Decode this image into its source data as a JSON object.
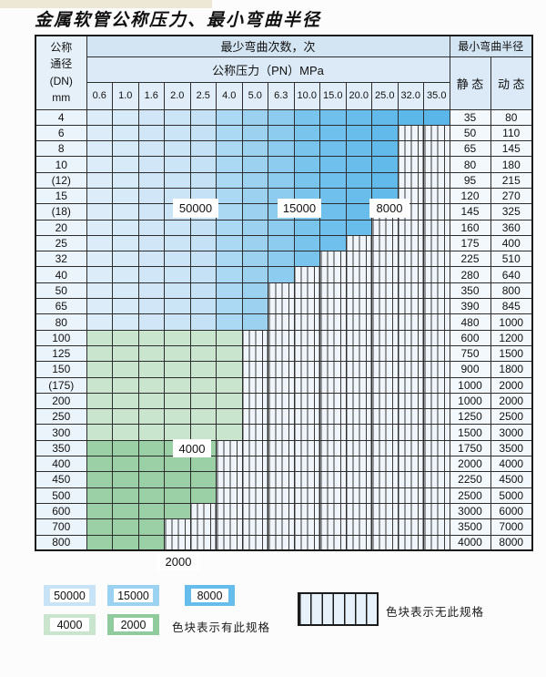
{
  "page": {
    "title": "金属软管公称压力、最小弯曲半径"
  },
  "table": {
    "corner": {
      "line1": "公称",
      "line2": "通径",
      "line3": "(DN)",
      "line4": "mm"
    },
    "cycles_header": "最少弯曲次数，次",
    "pressure_header": "公称压力（PN）MPa",
    "radius_header": "最小弯曲半径",
    "static_label": "静 态",
    "dynamic_label": "动 态",
    "pressures": [
      "0.6",
      "1.0",
      "1.6",
      "2.0",
      "2.5",
      "4.0",
      "5.0",
      "6.3",
      "10.0",
      "15.0",
      "20.0",
      "25.0",
      "32.0",
      "35.0"
    ],
    "blue_col_cycles": {
      "0.6-2.5": "50000",
      "4.0-6.3": "15000",
      "10.0-35.0": "8000"
    },
    "zone_colors": {
      "blue_by_col": [
        "#DCEDF9",
        "#D7EAF8",
        "#D1E7F7",
        "#CBE4F6",
        "#C5E1F5",
        "#ABD8F2",
        "#9CD2F0",
        "#8DCBEF",
        "#78C4ED",
        "#6FC0EC",
        "#68BDEB",
        "#62BAEA",
        "#5DB8EA",
        "#5AB6E9"
      ],
      "green_4000": "#CAE5CE",
      "green_2000": "#9BCFA5"
    },
    "rows": [
      {
        "dn": "4",
        "zone": "blue",
        "colored": 14,
        "static": "35",
        "dynamic": "80"
      },
      {
        "dn": "6",
        "zone": "blue",
        "colored": 12,
        "static": "50",
        "dynamic": "110"
      },
      {
        "dn": "8",
        "zone": "blue",
        "colored": 12,
        "static": "65",
        "dynamic": "145"
      },
      {
        "dn": "10",
        "zone": "blue",
        "colored": 12,
        "static": "80",
        "dynamic": "180"
      },
      {
        "dn": "(12)",
        "zone": "blue",
        "colored": 12,
        "static": "95",
        "dynamic": "215"
      },
      {
        "dn": "15",
        "zone": "blue",
        "colored": 12,
        "static": "120",
        "dynamic": "270"
      },
      {
        "dn": "(18)",
        "zone": "blue",
        "colored": 11,
        "static": "145",
        "dynamic": "325"
      },
      {
        "dn": "20",
        "zone": "blue",
        "colored": 11,
        "static": "160",
        "dynamic": "360"
      },
      {
        "dn": "25",
        "zone": "blue",
        "colored": 10,
        "static": "175",
        "dynamic": "400"
      },
      {
        "dn": "32",
        "zone": "blue",
        "colored": 9,
        "static": "225",
        "dynamic": "510"
      },
      {
        "dn": "40",
        "zone": "blue",
        "colored": 8,
        "static": "280",
        "dynamic": "640"
      },
      {
        "dn": "50",
        "zone": "blue",
        "colored": 7,
        "static": "350",
        "dynamic": "800"
      },
      {
        "dn": "65",
        "zone": "blue",
        "colored": 7,
        "static": "390",
        "dynamic": "845"
      },
      {
        "dn": "80",
        "zone": "blue",
        "colored": 7,
        "static": "480",
        "dynamic": "1000"
      },
      {
        "dn": "100",
        "zone": "green-4000",
        "colored": 6,
        "static": "600",
        "dynamic": "1200"
      },
      {
        "dn": "125",
        "zone": "green-4000",
        "colored": 6,
        "static": "750",
        "dynamic": "1500"
      },
      {
        "dn": "150",
        "zone": "green-4000",
        "colored": 6,
        "static": "900",
        "dynamic": "1800"
      },
      {
        "dn": "(175)",
        "zone": "green-4000",
        "colored": 6,
        "static": "1000",
        "dynamic": "2000"
      },
      {
        "dn": "200",
        "zone": "green-4000",
        "colored": 6,
        "static": "1000",
        "dynamic": "2000"
      },
      {
        "dn": "250",
        "zone": "green-4000",
        "colored": 6,
        "static": "1250",
        "dynamic": "2500"
      },
      {
        "dn": "300",
        "zone": "green-4000",
        "colored": 6,
        "static": "1500",
        "dynamic": "3000"
      },
      {
        "dn": "350",
        "zone": "green-2000",
        "colored": 5,
        "static": "1750",
        "dynamic": "3500"
      },
      {
        "dn": "400",
        "zone": "green-2000",
        "colored": 5,
        "static": "2000",
        "dynamic": "4000"
      },
      {
        "dn": "450",
        "zone": "green-2000",
        "colored": 5,
        "static": "2250",
        "dynamic": "4500"
      },
      {
        "dn": "500",
        "zone": "green-2000",
        "colored": 5,
        "static": "2500",
        "dynamic": "5000"
      },
      {
        "dn": "600",
        "zone": "green-2000",
        "colored": 4,
        "static": "3000",
        "dynamic": "6000"
      },
      {
        "dn": "700",
        "zone": "green-2000",
        "colored": 3,
        "static": "3500",
        "dynamic": "7000"
      },
      {
        "dn": "800",
        "zone": "green-2000",
        "colored": 3,
        "static": "4000",
        "dynamic": "8000"
      }
    ]
  },
  "overlay_labels": [
    "50000",
    "15000",
    "8000",
    "4000",
    "2000"
  ],
  "legend": {
    "spec_items": [
      {
        "label": "50000",
        "color": "#C8E3F6"
      },
      {
        "label": "15000",
        "color": "#9BD2F1"
      },
      {
        "label": "8000",
        "color": "#66BCEB"
      },
      {
        "label": "4000",
        "color": "#CAE5CE"
      },
      {
        "label": "2000",
        "color": "#8FCB9C"
      }
    ],
    "has_spec_text": "色块表示有此规格",
    "no_spec_text": "色块表示无此规格"
  }
}
